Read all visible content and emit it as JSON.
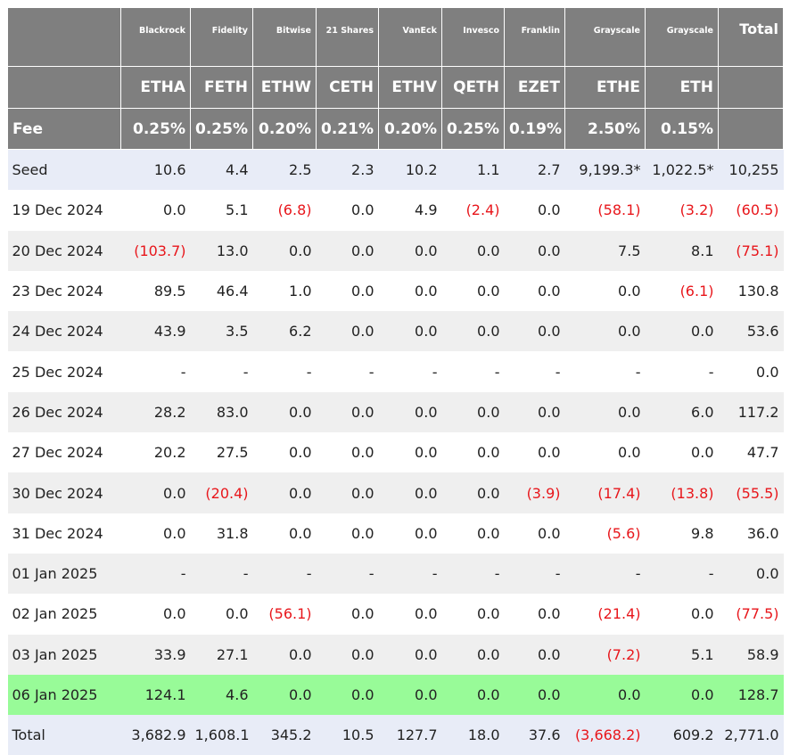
{
  "colors": {
    "header_bg": "#7f7f7f",
    "negative": "#e8161b",
    "highlight_row": "#98fb98",
    "alt_row": "#efefef",
    "seed_row": "#e8ecf7"
  },
  "header": {
    "issuers": [
      "",
      "Blackrock",
      "Fidelity",
      "Bitwise",
      "21 Shares",
      "VanEck",
      "Invesco",
      "Franklin",
      "Grayscale",
      "Grayscale",
      "Total"
    ],
    "tickers": [
      "",
      "ETHA",
      "FETH",
      "ETHW",
      "CETH",
      "ETHV",
      "QETH",
      "EZET",
      "ETHE",
      "ETH",
      ""
    ],
    "fees": [
      "Fee",
      "0.25%",
      "0.25%",
      "0.20%",
      "0.21%",
      "0.20%",
      "0.25%",
      "0.19%",
      "2.50%",
      "0.15%",
      ""
    ]
  },
  "rows": [
    {
      "style": "blue",
      "cells": [
        "Seed",
        "10.6",
        "4.4",
        "2.5",
        "2.3",
        "10.2",
        "1.1",
        "2.7",
        "9,199.3*",
        "1,022.5*",
        "10,255"
      ]
    },
    {
      "style": "white",
      "cells": [
        "19 Dec 2024",
        "0.0",
        "5.1",
        "(6.8)",
        "0.0",
        "4.9",
        "(2.4)",
        "0.0",
        "(58.1)",
        "(3.2)",
        "(60.5)"
      ]
    },
    {
      "style": "grey",
      "cells": [
        "20 Dec 2024",
        "(103.7)",
        "13.0",
        "0.0",
        "0.0",
        "0.0",
        "0.0",
        "0.0",
        "7.5",
        "8.1",
        "(75.1)"
      ]
    },
    {
      "style": "white",
      "cells": [
        "23 Dec 2024",
        "89.5",
        "46.4",
        "1.0",
        "0.0",
        "0.0",
        "0.0",
        "0.0",
        "0.0",
        "(6.1)",
        "130.8"
      ]
    },
    {
      "style": "grey",
      "cells": [
        "24 Dec 2024",
        "43.9",
        "3.5",
        "6.2",
        "0.0",
        "0.0",
        "0.0",
        "0.0",
        "0.0",
        "0.0",
        "53.6"
      ]
    },
    {
      "style": "white",
      "cells": [
        "25 Dec 2024",
        "-",
        "-",
        "-",
        "-",
        "-",
        "-",
        "-",
        "-",
        "-",
        "0.0"
      ]
    },
    {
      "style": "grey",
      "cells": [
        "26 Dec 2024",
        "28.2",
        "83.0",
        "0.0",
        "0.0",
        "0.0",
        "0.0",
        "0.0",
        "0.0",
        "6.0",
        "117.2"
      ]
    },
    {
      "style": "white",
      "cells": [
        "27 Dec 2024",
        "20.2",
        "27.5",
        "0.0",
        "0.0",
        "0.0",
        "0.0",
        "0.0",
        "0.0",
        "0.0",
        "47.7"
      ]
    },
    {
      "style": "grey",
      "cells": [
        "30 Dec 2024",
        "0.0",
        "(20.4)",
        "0.0",
        "0.0",
        "0.0",
        "0.0",
        "(3.9)",
        "(17.4)",
        "(13.8)",
        "(55.5)"
      ]
    },
    {
      "style": "white",
      "cells": [
        "31 Dec 2024",
        "0.0",
        "31.8",
        "0.0",
        "0.0",
        "0.0",
        "0.0",
        "0.0",
        "(5.6)",
        "9.8",
        "36.0"
      ]
    },
    {
      "style": "grey",
      "cells": [
        "01 Jan 2025",
        "-",
        "-",
        "-",
        "-",
        "-",
        "-",
        "-",
        "-",
        "-",
        "0.0"
      ]
    },
    {
      "style": "white",
      "cells": [
        "02 Jan 2025",
        "0.0",
        "0.0",
        "(56.1)",
        "0.0",
        "0.0",
        "0.0",
        "0.0",
        "(21.4)",
        "0.0",
        "(77.5)"
      ]
    },
    {
      "style": "grey",
      "cells": [
        "03 Jan 2025",
        "33.9",
        "27.1",
        "0.0",
        "0.0",
        "0.0",
        "0.0",
        "0.0",
        "(7.2)",
        "5.1",
        "58.9"
      ]
    },
    {
      "style": "green",
      "cells": [
        "06 Jan 2025",
        "124.1",
        "4.6",
        "0.0",
        "0.0",
        "0.0",
        "0.0",
        "0.0",
        "0.0",
        "0.0",
        "128.7"
      ]
    },
    {
      "style": "totalrow",
      "cells": [
        "Total",
        "3,682.9",
        "1,608.1",
        "345.2",
        "10.5",
        "127.7",
        "18.0",
        "37.6",
        "(3,668.2)",
        "609.2",
        "2,771.0"
      ]
    }
  ]
}
